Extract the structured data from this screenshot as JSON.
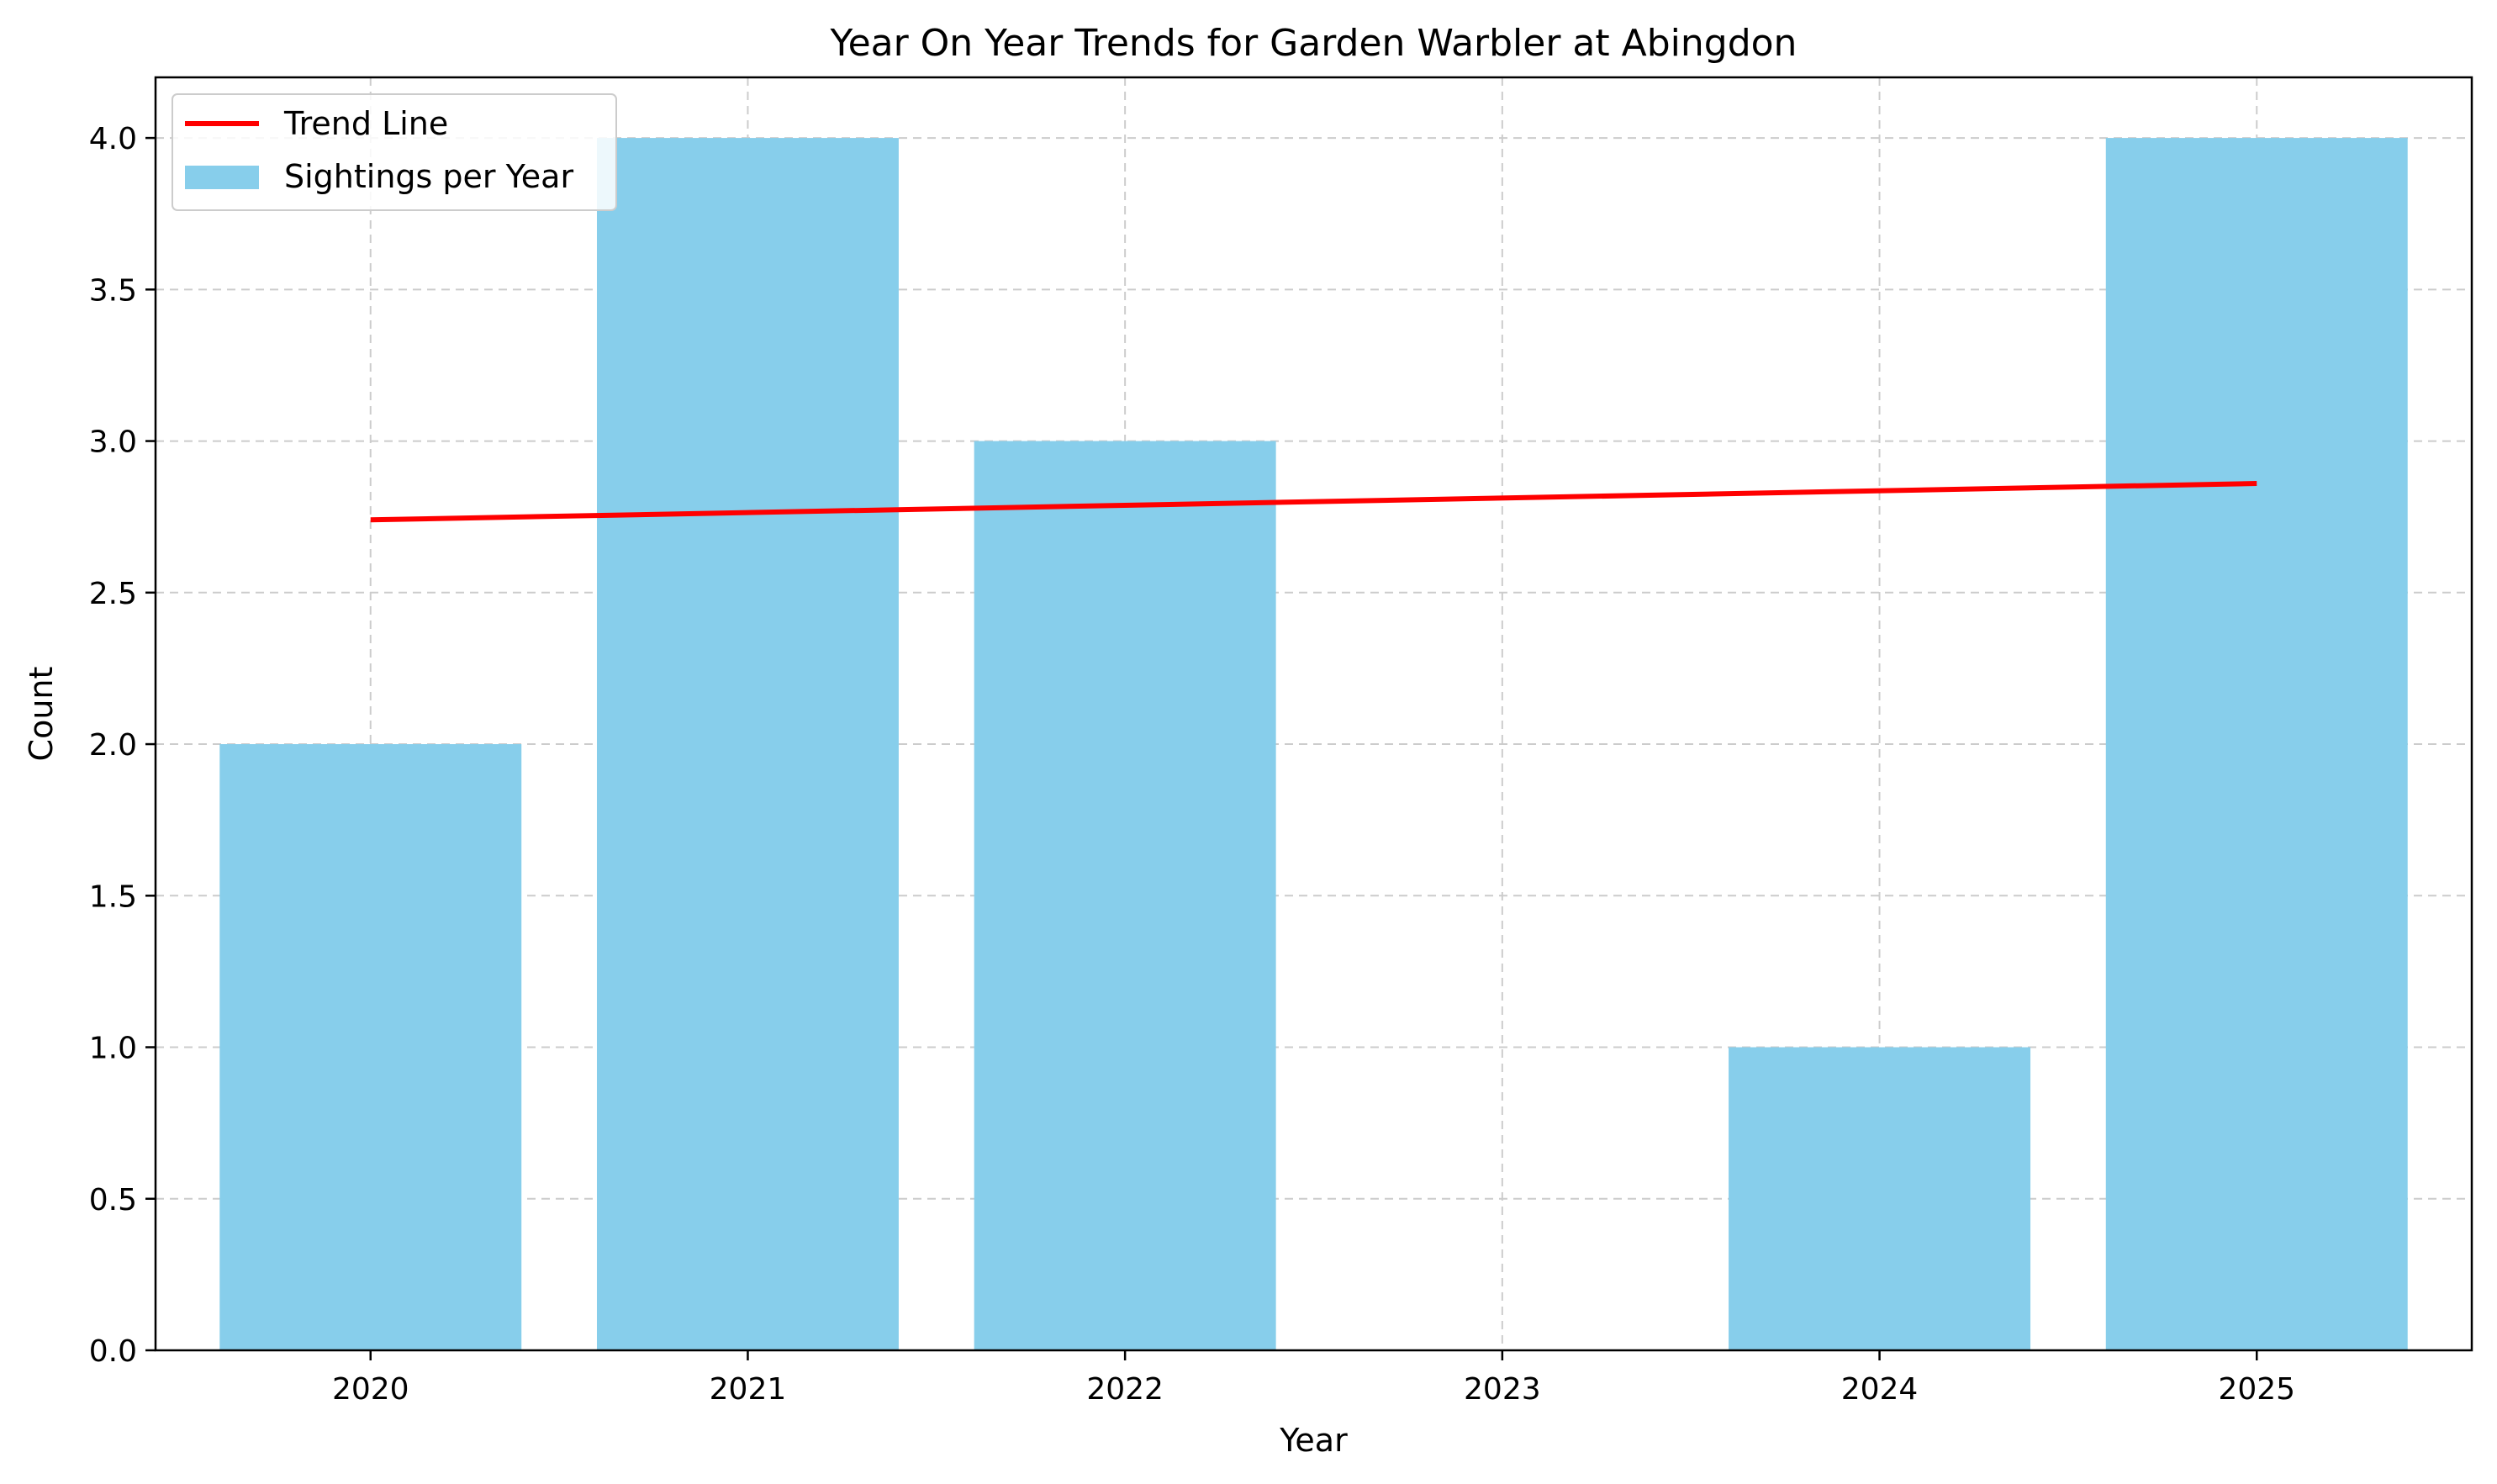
{
  "chart_data": {
    "type": "bar",
    "title": "Year On Year Trends for Garden Warbler at Abingdon",
    "xlabel": "Year",
    "ylabel": "Count",
    "categories": [
      "2020",
      "2021",
      "2022",
      "2023",
      "2024",
      "2025"
    ],
    "series": [
      {
        "name": "Sightings per Year",
        "type": "bar",
        "values": [
          2,
          4,
          3,
          0,
          1,
          4
        ],
        "color": "#87CEEB"
      },
      {
        "name": "Trend Line",
        "type": "line",
        "x": [
          "2020",
          "2025"
        ],
        "values": [
          2.74,
          2.86
        ],
        "color": "#FF0000"
      }
    ],
    "yticks": [
      "0.0",
      "0.5",
      "1.0",
      "1.5",
      "2.0",
      "2.5",
      "3.0",
      "3.5",
      "4.0"
    ],
    "ylim": [
      0,
      4.2
    ],
    "grid": true,
    "legend_position": "top-left"
  }
}
